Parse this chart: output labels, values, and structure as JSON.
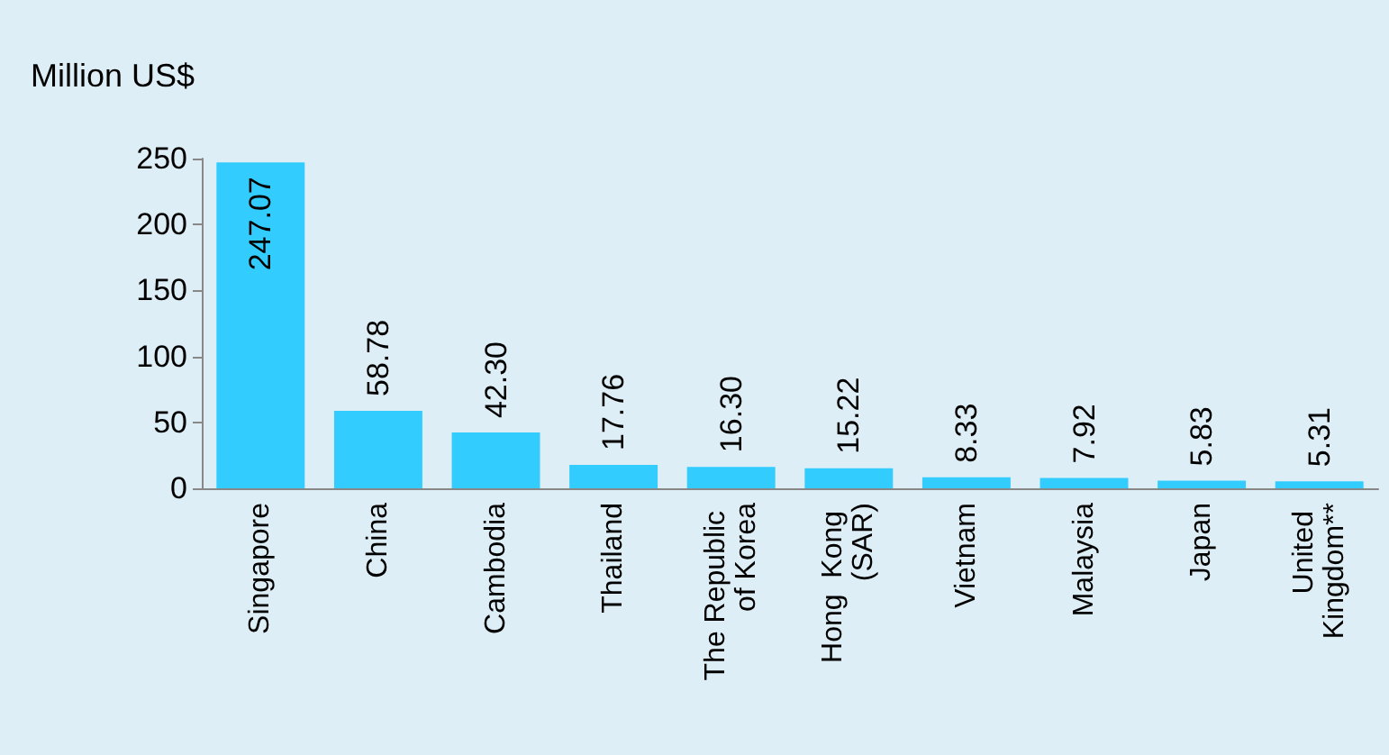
{
  "chart_data": {
    "type": "bar",
    "ylabel": "Million US$",
    "categories": [
      "Singapore",
      "China",
      "Cambodia",
      "Thailand",
      "The Republic of Korea",
      "Hong  Kong (SAR)",
      "Vietnam",
      "Malaysia",
      "Japan",
      "United Kingdom**"
    ],
    "values": [
      247.07,
      58.78,
      42.3,
      17.76,
      16.3,
      15.22,
      8.33,
      7.92,
      5.83,
      5.31
    ],
    "value_labels": [
      "247.07",
      "58.78",
      "42.30",
      "17.76",
      "16.30",
      "15.22",
      "8.33",
      "7.92",
      "5.83",
      "5.31"
    ],
    "color": "#33ccff",
    "ylim": [
      0,
      250
    ],
    "yticks": [
      0,
      50,
      100,
      150,
      200,
      250
    ],
    "grid": false
  }
}
